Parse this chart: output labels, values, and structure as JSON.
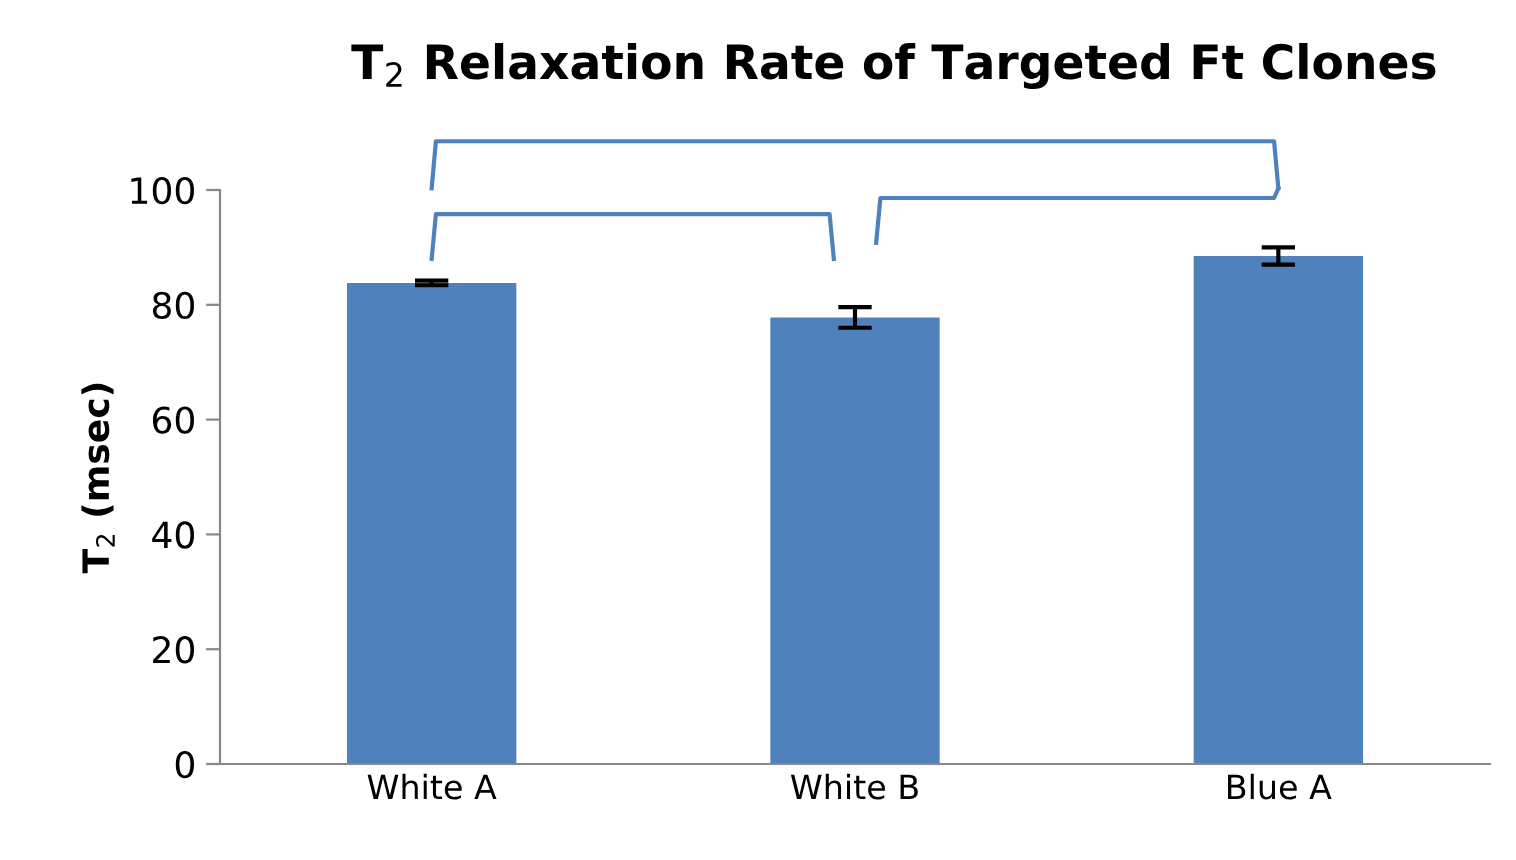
{
  "chart_data": {
    "type": "bar",
    "title": "T$_{2}$ Relaxation Rate of Targeted Ft Clones",
    "ylabel": "T$_{2}$ (msec)",
    "categories": [
      "White A",
      "White B",
      "Blue A"
    ],
    "values": [
      83.8,
      77.8,
      88.5
    ],
    "errors": [
      0.4,
      1.8,
      1.5
    ],
    "color": "#4f81bd",
    "ylim": [
      0,
      100
    ],
    "yticks": [
      0,
      20,
      40,
      60,
      80,
      100
    ],
    "grid": false,
    "legend": false
  }
}
